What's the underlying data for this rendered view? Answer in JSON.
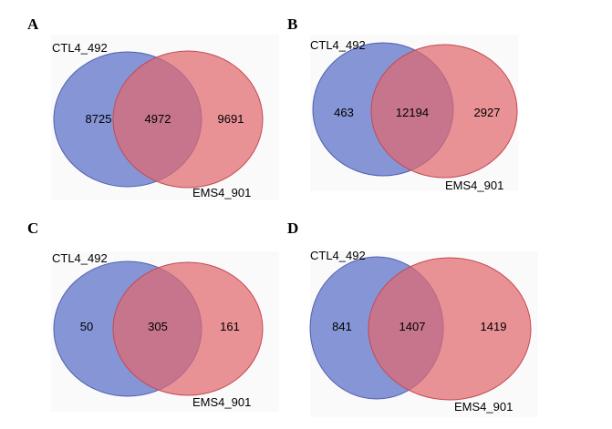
{
  "colors": {
    "set_a_fill": "#6b7fce",
    "set_a_stroke": "#5060b0",
    "set_b_fill": "#e06a6f",
    "set_b_stroke": "#c44a52",
    "background_panel": "#fafafa"
  },
  "panels": [
    {
      "label": "A",
      "set_a": "CTL4_492",
      "set_b": "EMS4_901",
      "only_a": "8725",
      "both": "4972",
      "only_b": "9691"
    },
    {
      "label": "B",
      "set_a": "CTL4_492",
      "set_b": "EMS4_901",
      "only_a": "463",
      "both": "12194",
      "only_b": "2927"
    },
    {
      "label": "C",
      "set_a": "CTL4_492",
      "set_b": "EMS4_901",
      "only_a": "50",
      "both": "305",
      "only_b": "161"
    },
    {
      "label": "D",
      "set_a": "CTL4_492",
      "set_b": "EMS4_901",
      "only_a": "841",
      "both": "1407",
      "only_b": "1419"
    }
  ]
}
